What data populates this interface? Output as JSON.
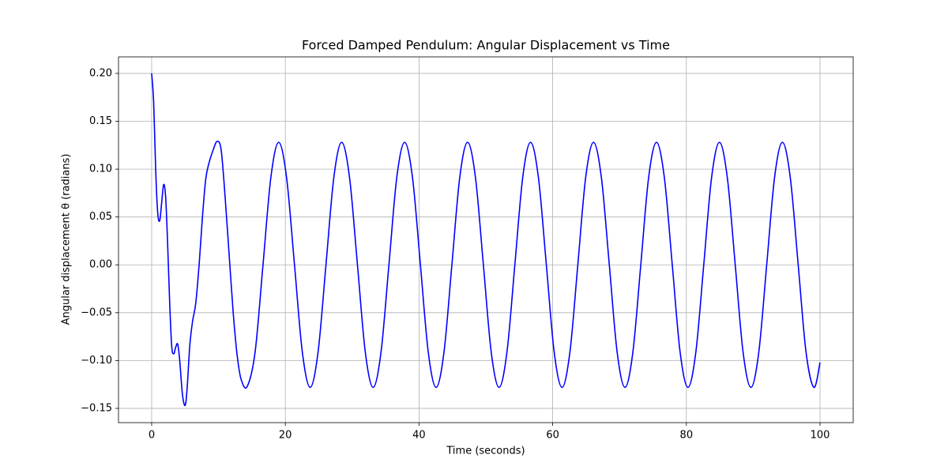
{
  "chart_data": {
    "type": "line",
    "title": "Forced Damped Pendulum: Angular Displacement vs Time",
    "x_label": "Time (seconds)",
    "y_label": "Angular displacement θ (radians)",
    "color": "#0000ff",
    "grid": true,
    "xlim": [
      -4.96,
      104.96
    ],
    "ylim": [
      -0.1649,
      0.2173
    ],
    "xticks": [
      0,
      20,
      40,
      60,
      80,
      100
    ],
    "yticks": [
      {
        "value": -0.15,
        "label": "−0.15"
      },
      {
        "value": -0.1,
        "label": "−0.10"
      },
      {
        "value": -0.05,
        "label": "−0.05"
      },
      {
        "value": 0,
        "label": "0.00"
      },
      {
        "value": 0.05,
        "label": "0.05"
      },
      {
        "value": 0.1,
        "label": "0.10"
      },
      {
        "value": 0.15,
        "label": "0.15"
      },
      {
        "value": 0.2,
        "label": "0.20"
      }
    ],
    "x": [
      0,
      0.3,
      0.6,
      0.9,
      1.2,
      1.5,
      1.8,
      2.1,
      2.4,
      2.7,
      3.0,
      3.3,
      3.6,
      3.9,
      4.2,
      4.6,
      5.0,
      5.3,
      5.7,
      6.1,
      6.6,
      7.1,
      7.6,
      8.1,
      8.6,
      9.2,
      9.8,
      10.4,
      11.0,
      11.6,
      12.2,
      12.8,
      13.4,
      14.3,
      15.48,
      16.66,
      17.83,
      19.01,
      20.19,
      21.37,
      22.54,
      23.72,
      24.9,
      26.08,
      27.25,
      28.43,
      29.61,
      30.79,
      31.96,
      33.14,
      34.32,
      35.5,
      36.67,
      37.85,
      39.03,
      40.21,
      41.38,
      42.56,
      43.74,
      44.92,
      46.09,
      47.27,
      48.45,
      49.63,
      50.8,
      51.98,
      53.16,
      54.34,
      55.51,
      56.69,
      57.87,
      59.05,
      60.22,
      61.4,
      62.58,
      63.76,
      64.93,
      66.11,
      67.29,
      68.47,
      69.64,
      70.82,
      72.0,
      73.18,
      74.35,
      75.53,
      76.71,
      77.89,
      79.06,
      80.24,
      81.42,
      82.6,
      83.77,
      84.95,
      86.13,
      87.31,
      88.48,
      89.66,
      90.84,
      92.02,
      93.19,
      94.37,
      95.55,
      96.73,
      97.9,
      99.08,
      100
    ],
    "values": [
      0.2,
      0.17,
      0.1,
      0.055,
      0.046,
      0.065,
      0.084,
      0.07,
      0.02,
      -0.04,
      -0.085,
      -0.093,
      -0.086,
      -0.083,
      -0.1,
      -0.135,
      -0.147,
      -0.13,
      -0.085,
      -0.06,
      -0.04,
      0.0,
      0.05,
      0.09,
      0.107,
      0.12,
      0.129,
      0.12,
      0.07,
      0.01,
      -0.05,
      -0.095,
      -0.12,
      -0.127,
      -0.091,
      0,
      0.091,
      0.128,
      0.091,
      0,
      -0.091,
      -0.128,
      -0.091,
      0,
      0.091,
      0.128,
      0.091,
      0,
      -0.091,
      -0.128,
      -0.091,
      0,
      0.091,
      0.128,
      0.091,
      0,
      -0.091,
      -0.128,
      -0.091,
      0,
      0.091,
      0.128,
      0.091,
      0,
      -0.091,
      -0.128,
      -0.091,
      0,
      0.091,
      0.128,
      0.091,
      0,
      -0.091,
      -0.128,
      -0.091,
      0,
      0.091,
      0.128,
      0.091,
      0,
      -0.091,
      -0.128,
      -0.091,
      0,
      0.091,
      0.128,
      0.091,
      0,
      -0.091,
      -0.128,
      -0.091,
      0,
      0.091,
      0.128,
      0.091,
      0,
      -0.091,
      -0.128,
      -0.091,
      0,
      0.091,
      0.128,
      0.091,
      0,
      -0.091,
      -0.128,
      -0.102
    ]
  }
}
